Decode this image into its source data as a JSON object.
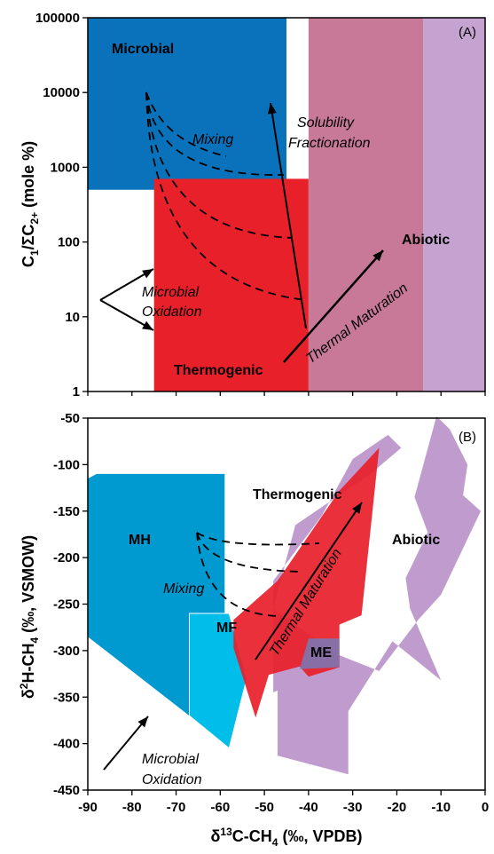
{
  "chart_data": [
    {
      "type": "area",
      "panel": "(A)",
      "ylabel": "C1/ΣC2+ (mole %)",
      "ylabel_main": "C",
      "ylabel_sub1": "1",
      "ylabel_mid": "/ΣC",
      "ylabel_sub2": "2+",
      "ylabel_tail": " (mole %)",
      "yscale": "log",
      "xlim": [
        -90,
        0
      ],
      "ylim": [
        1,
        100000
      ],
      "yticks": [
        "1",
        "10",
        "100",
        "1000",
        "10000",
        "100000"
      ],
      "fields": [
        {
          "name": "Microbial",
          "x": [
            -90,
            -45
          ],
          "y": [
            500,
            100000
          ],
          "color": "#0a72bb"
        },
        {
          "name": "Thermogenic",
          "x": [
            -75,
            -40
          ],
          "y": [
            1,
            700
          ],
          "color": "#e8202a"
        },
        {
          "name": "Abiotic",
          "x": [
            -40,
            -14
          ],
          "y": [
            1,
            100000
          ],
          "color": "#c87998"
        },
        {
          "name": "",
          "x": [
            -14,
            0
          ],
          "y": [
            1,
            100000
          ],
          "color": "#c5a3d0"
        }
      ],
      "labels": {
        "microbial": "Microbial",
        "abiotic": "Abiotic",
        "thermogenic": "Thermogenic",
        "mixing": "Mixing",
        "solubility_1": "Solubility",
        "solubility_2": "Fractionation",
        "oxidation_1": "Microbial",
        "oxidation_2": "Oxidation",
        "maturation": "Thermal Maturation"
      }
    },
    {
      "type": "area",
      "panel": "(B)",
      "xlabel": "δ13C-CH4 (‰, VPDB)",
      "xlabel_a": "δ",
      "xlabel_sup": "13",
      "xlabel_b": "C-CH",
      "xlabel_sub": "4",
      "xlabel_c": " (‰, VPDB)",
      "ylabel": "δ2H-CH4 (‰, VSMOW)",
      "ylabel_a": "δ",
      "ylabel_sup": "2",
      "ylabel_b": "H-CH",
      "ylabel_sub": "4",
      "ylabel_c": " (‰, VSMOW)",
      "xlim": [
        -90,
        0
      ],
      "ylim": [
        -450,
        -50
      ],
      "xticks": [
        "-90",
        "-80",
        "-70",
        "-60",
        "-50",
        "-40",
        "-30",
        "-20",
        "-10",
        "0"
      ],
      "yticks": [
        "-450",
        "-400",
        "-350",
        "-300",
        "-250",
        "-200",
        "-150",
        "-100",
        "-50"
      ],
      "fields": [
        {
          "name": "Abiotic",
          "color": "#b48bc4",
          "points": [
            [
              -47,
              -343
            ],
            [
              -47,
              -413
            ],
            [
              -31,
              -433
            ],
            [
              -31,
              -365
            ],
            [
              -21,
              -290
            ],
            [
              -10,
              -332
            ],
            [
              -17,
              -255
            ],
            [
              -18,
              -222
            ],
            [
              -13,
              -173
            ],
            [
              -16,
              -135
            ],
            [
              -11,
              -48
            ],
            [
              -8,
              -62
            ],
            [
              -4,
              -100
            ],
            [
              -5,
              -133
            ],
            [
              -1,
              -150
            ],
            [
              -10,
              -240
            ],
            [
              -15,
              -266
            ],
            [
              -24,
              -322
            ],
            [
              -33,
              -305
            ],
            [
              -40,
              -282
            ],
            [
              -48,
              -255
            ],
            [
              -43,
              -165
            ],
            [
              -26,
              -110
            ],
            [
              -19,
              -82
            ],
            [
              -22,
              -68
            ],
            [
              -30,
              -94
            ],
            [
              -37,
              -155
            ],
            [
              -48,
              -225
            ],
            [
              -48,
              -345
            ]
          ]
        },
        {
          "name": "MH",
          "color": "#0099d0",
          "points": [
            [
              -90,
              -115
            ],
            [
              -88,
              -110
            ],
            [
              -59,
              -110
            ],
            [
              -59,
              -260
            ],
            [
              -67,
              -260
            ],
            [
              -67,
              -370
            ],
            [
              -90,
              -285
            ]
          ]
        },
        {
          "name": "MF",
          "color": "#00bde9",
          "points": [
            [
              -67,
              -260
            ],
            [
              -58,
              -260
            ],
            [
              -54,
              -330
            ],
            [
              -58,
              -405
            ],
            [
              -67,
              -370
            ]
          ]
        },
        {
          "name": "Thermogenic",
          "color": "#e8202a",
          "points": [
            [
              -57,
              -267
            ],
            [
              -47,
              -225
            ],
            [
              -33,
              -128
            ],
            [
              -24,
              -82
            ],
            [
              -28,
              -262
            ],
            [
              -33,
              -272
            ],
            [
              -33,
              -318
            ],
            [
              -40,
              -328
            ],
            [
              -42,
              -317
            ],
            [
              -49,
              -326
            ],
            [
              -52,
              -372
            ],
            [
              -57,
              -297
            ]
          ]
        },
        {
          "name": "ME",
          "color": "#6f7fc0",
          "points": [
            [
              -40,
              -287
            ],
            [
              -33,
              -287
            ],
            [
              -33,
              -318
            ],
            [
              -42,
              -320
            ]
          ]
        }
      ],
      "labels": {
        "mh": "MH",
        "mf": "MF",
        "me": "ME",
        "thermogenic": "Thermogenic",
        "abiotic": "Abiotic",
        "mixing": "Mixing",
        "oxidation_1": "Microbial",
        "oxidation_2": "Oxidation",
        "maturation": "Thermal Maturation"
      }
    }
  ]
}
